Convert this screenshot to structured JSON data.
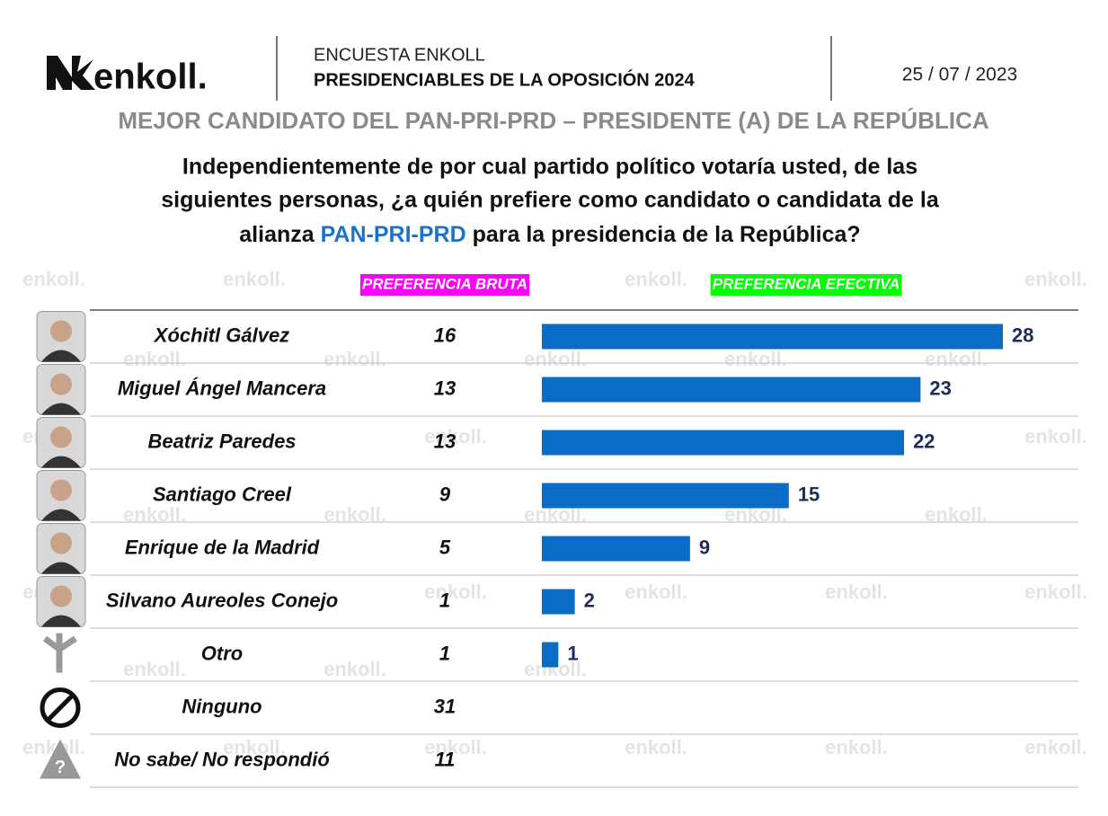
{
  "header": {
    "brand": "enkoll.",
    "survey": "ENCUESTA ENKOLL",
    "title": "PRESIDENCIABLES DE LA OPOSICIÓN 2024",
    "date": "25 / 07 / 2023",
    "watermark": "enkoll."
  },
  "chart_data": {
    "type": "bar",
    "orientation": "horizontal",
    "title": "MEJOR CANDIDATO DEL PAN-PRI-PRD – PRESIDENTE (A) DE LA REPÚBLICA",
    "question": [
      "Independientemente de por cual partido político votaría usted, de las",
      "siguientes personas, ¿a quién prefiere como candidato o candidata de la",
      "alianza ",
      "PAN-PRI-PRD",
      " para la presidencia de la República?"
    ],
    "categories": [
      "Xóchitl Gálvez",
      "Miguel Ángel Mancera",
      "Beatriz Paredes",
      "Santiago Creel",
      "Enrique de la Madrid",
      "Silvano Aureoles Conejo",
      "Otro",
      "Ninguno",
      "No sabe/ No respondió"
    ],
    "series": [
      {
        "name": "PREFERENCIA BRUTA",
        "label_color": "#ff00ff",
        "values": [
          16,
          13,
          13,
          9,
          5,
          1,
          1,
          31,
          11
        ]
      },
      {
        "name": "PREFERENCIA EFECTIVA",
        "label_color": "#00ff00",
        "color": "#0a6cc4",
        "values": [
          28,
          23,
          22,
          15,
          9,
          2,
          1,
          null,
          null
        ]
      }
    ]
  }
}
